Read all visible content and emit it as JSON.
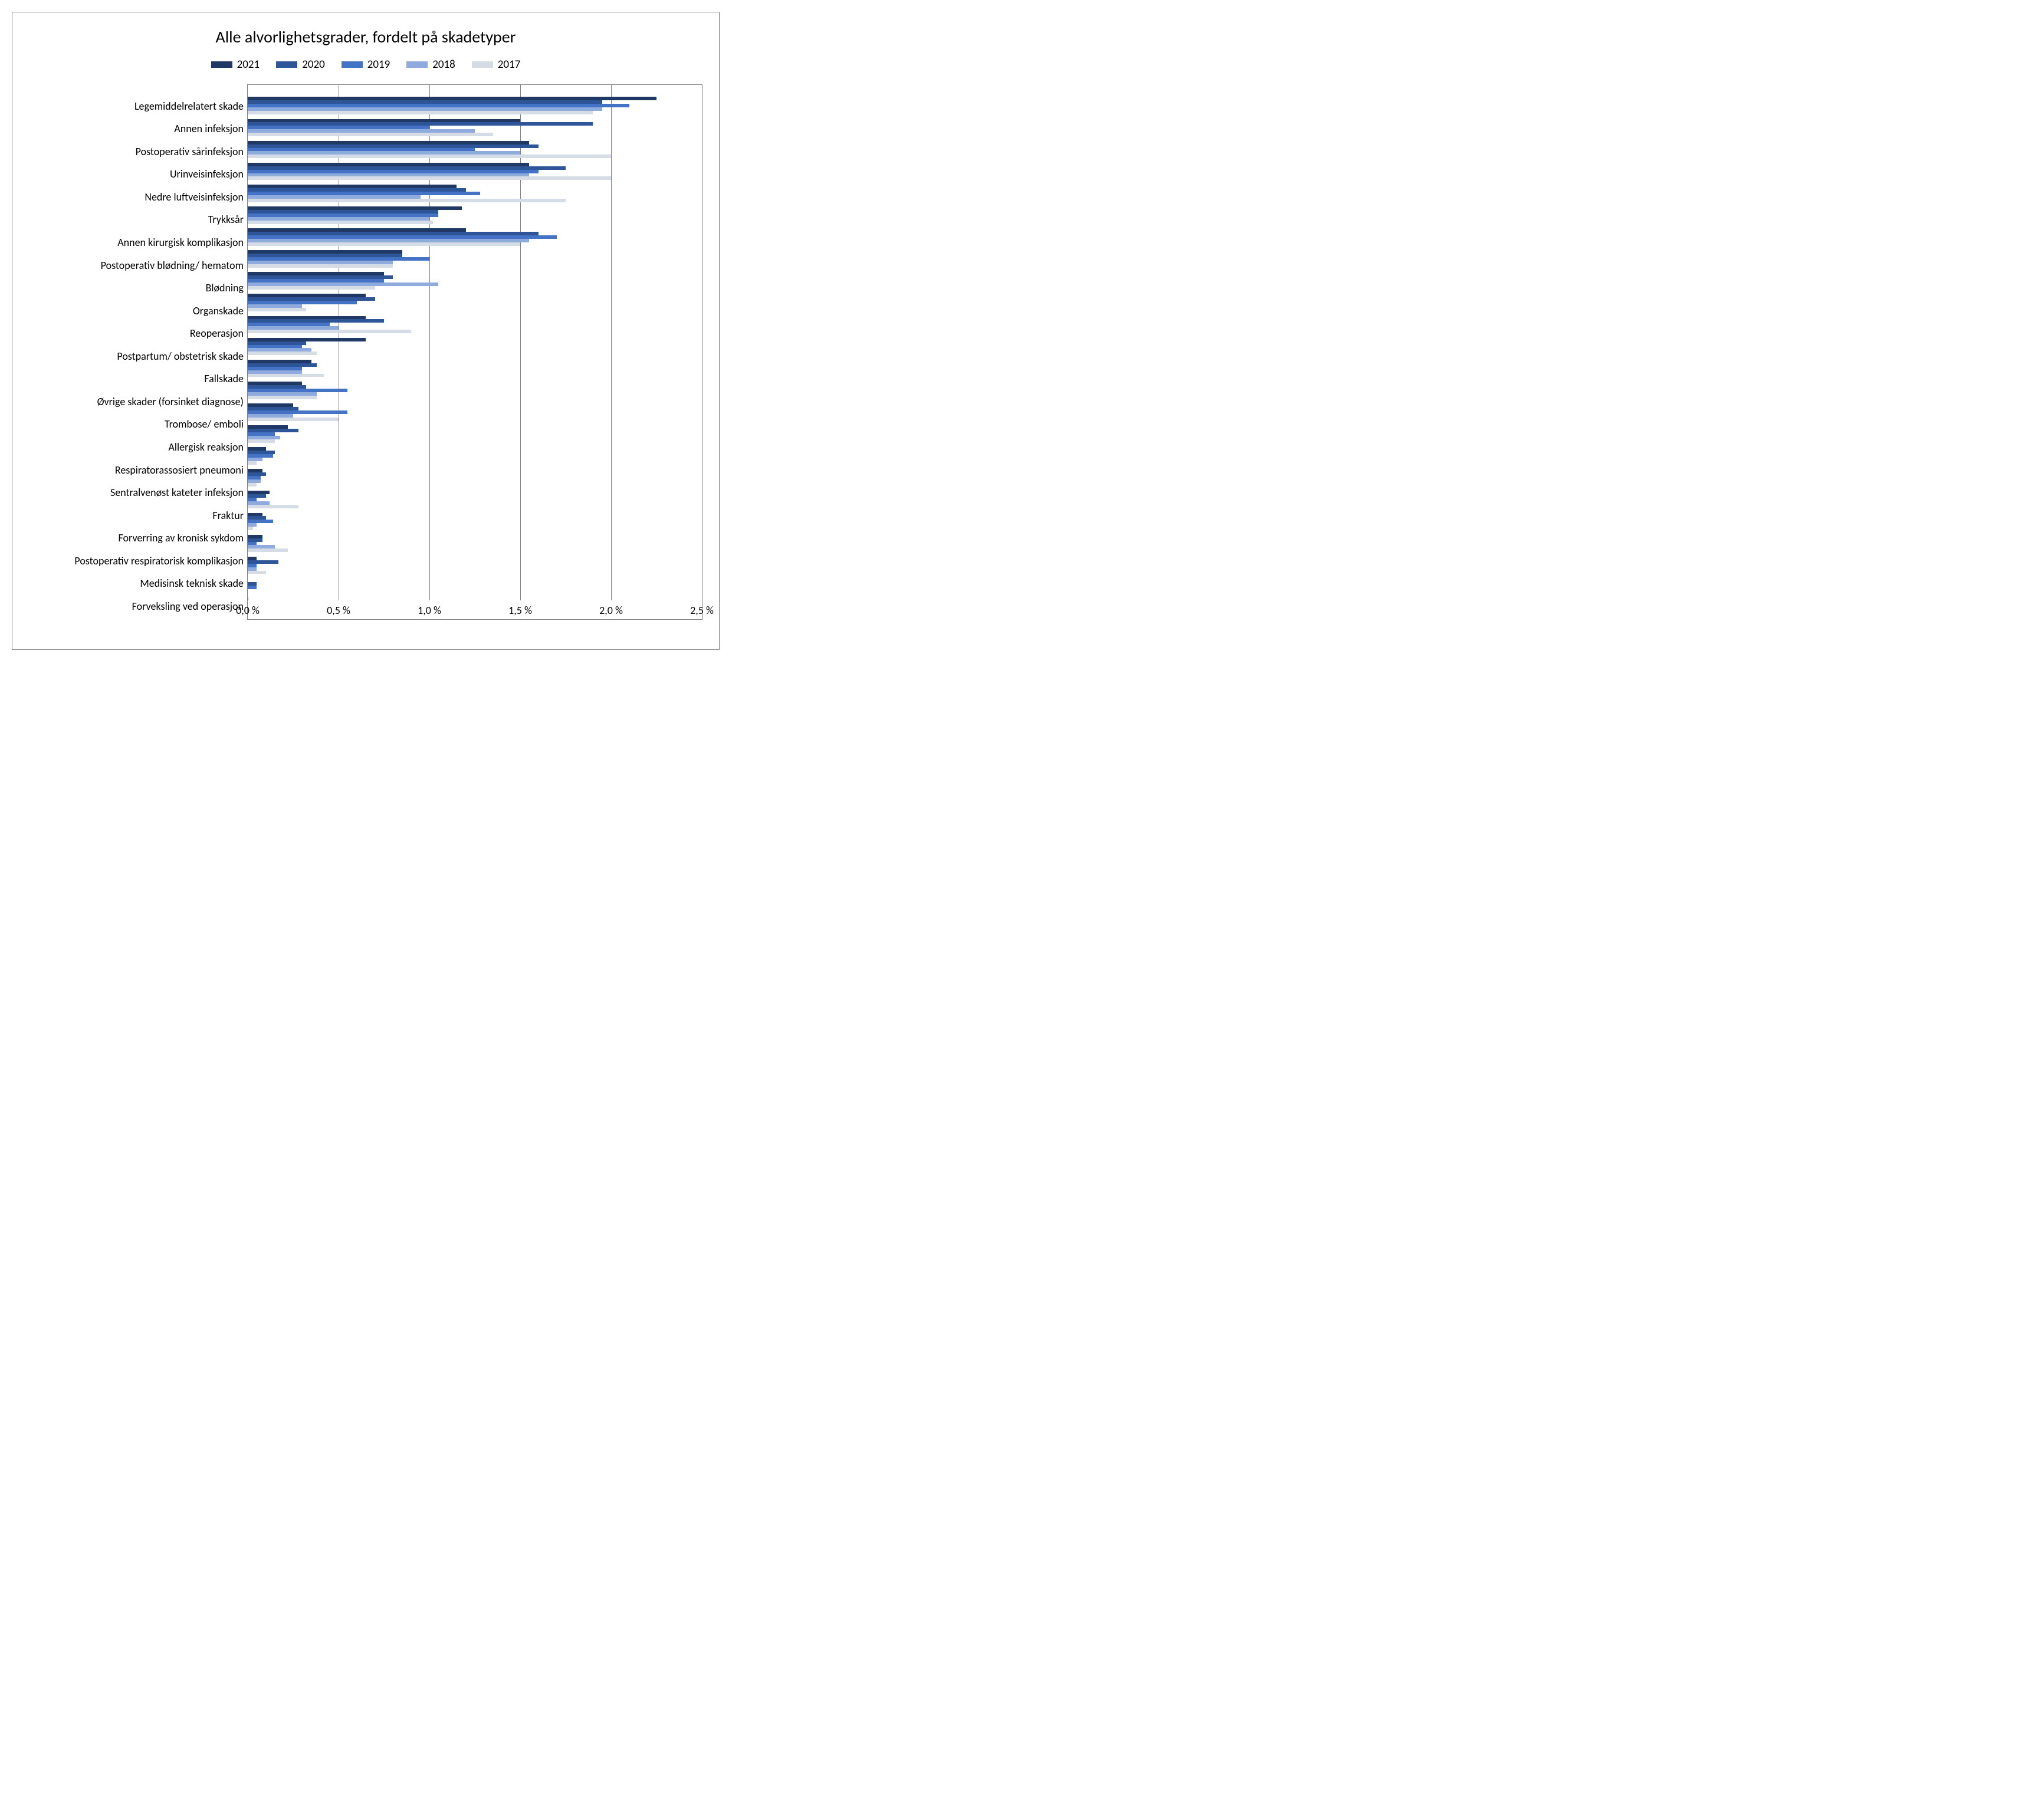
{
  "chart": {
    "type": "bar-horizontal-grouped",
    "title": "Alle alvorlighetsgrader, fordelt på skadetyper",
    "title_fontsize": 28,
    "background_color": "#ffffff",
    "border_color": "#808080",
    "grid_color": "#808080",
    "label_fontsize": 18,
    "legend_fontsize": 19,
    "xlim": [
      0.0,
      2.5
    ],
    "xtick_step": 0.5,
    "xticks": [
      {
        "value": 0.0,
        "label": "0,0 %"
      },
      {
        "value": 0.5,
        "label": "0,5 %"
      },
      {
        "value": 1.0,
        "label": "1,0 %"
      },
      {
        "value": 1.5,
        "label": "1,5 %"
      },
      {
        "value": 2.0,
        "label": "2,0 %"
      },
      {
        "value": 2.5,
        "label": "2,5 %"
      }
    ],
    "series": [
      {
        "name": "2021",
        "color": "#1f3864"
      },
      {
        "name": "2020",
        "color": "#2e5597"
      },
      {
        "name": "2019",
        "color": "#4472c4"
      },
      {
        "name": "2018",
        "color": "#8faadc"
      },
      {
        "name": "2017",
        "color": "#d6dce5"
      }
    ],
    "categories": [
      {
        "label": "Legemiddelrelatert skade",
        "values": [
          2.25,
          1.95,
          2.1,
          1.95,
          1.9
        ]
      },
      {
        "label": "Annen infeksjon",
        "values": [
          1.5,
          1.9,
          1.0,
          1.25,
          1.35
        ]
      },
      {
        "label": "Postoperativ sårinfeksjon",
        "values": [
          1.55,
          1.6,
          1.25,
          1.5,
          2.0
        ]
      },
      {
        "label": "Urinveisinfeksjon",
        "values": [
          1.55,
          1.75,
          1.6,
          1.55,
          2.0
        ]
      },
      {
        "label": "Nedre luftveisinfeksjon",
        "values": [
          1.15,
          1.2,
          1.28,
          0.95,
          1.75
        ]
      },
      {
        "label": "Trykksår",
        "values": [
          1.18,
          1.05,
          1.05,
          1.0,
          1.02
        ]
      },
      {
        "label": "Annen kirurgisk komplikasjon",
        "values": [
          1.2,
          1.6,
          1.7,
          1.55,
          1.5
        ]
      },
      {
        "label": "Postoperativ blødning/ hematom",
        "values": [
          0.85,
          0.85,
          1.0,
          0.8,
          0.8
        ]
      },
      {
        "label": "Blødning",
        "values": [
          0.75,
          0.8,
          0.75,
          1.05,
          0.7
        ]
      },
      {
        "label": "Organskade",
        "values": [
          0.65,
          0.7,
          0.6,
          0.3,
          0.32
        ]
      },
      {
        "label": "Reoperasjon",
        "values": [
          0.65,
          0.75,
          0.45,
          0.5,
          0.9
        ]
      },
      {
        "label": "Postpartum/ obstetrisk skade",
        "values": [
          0.65,
          0.32,
          0.3,
          0.35,
          0.38
        ]
      },
      {
        "label": "Fallskade",
        "values": [
          0.35,
          0.38,
          0.3,
          0.3,
          0.42
        ]
      },
      {
        "label": "Øvrige skader (forsinket diagnose)",
        "values": [
          0.3,
          0.32,
          0.55,
          0.38,
          0.38
        ]
      },
      {
        "label": "Trombose/ emboli",
        "values": [
          0.25,
          0.28,
          0.55,
          0.25,
          0.5
        ]
      },
      {
        "label": "Allergisk reaksjon",
        "values": [
          0.22,
          0.28,
          0.15,
          0.18,
          0.15
        ]
      },
      {
        "label": "Respiratorassosiert pneumoni",
        "values": [
          0.1,
          0.15,
          0.14,
          0.08,
          0.05
        ]
      },
      {
        "label": "Sentralvenøst kateter infeksjon",
        "values": [
          0.08,
          0.1,
          0.07,
          0.07,
          0.05
        ]
      },
      {
        "label": "Fraktur",
        "values": [
          0.12,
          0.1,
          0.05,
          0.12,
          0.28
        ]
      },
      {
        "label": "Forverring av kronisk sykdom",
        "values": [
          0.08,
          0.1,
          0.14,
          0.05,
          0.03
        ]
      },
      {
        "label": "Postoperativ respiratorisk komplikasjon",
        "values": [
          0.08,
          0.08,
          0.05,
          0.15,
          0.22
        ]
      },
      {
        "label": "Medisinsk teknisk skade",
        "values": [
          0.05,
          0.17,
          0.05,
          0.05,
          0.1
        ]
      },
      {
        "label": "Forveksling ved operasjon",
        "values": [
          0.0,
          0.05,
          0.05,
          0.0,
          0.0
        ]
      }
    ],
    "group_fill_ratio": 0.8,
    "group_top_padding_ratio": 0.55
  }
}
